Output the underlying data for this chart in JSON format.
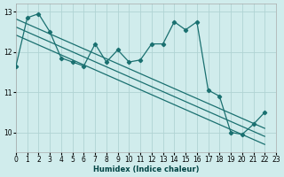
{
  "xlabel": "Humidex (Indice chaleur)",
  "bg_color": "#d0ecec",
  "grid_color": "#b0d4d4",
  "line_color": "#1a7070",
  "xlim": [
    0,
    23
  ],
  "ylim": [
    9.5,
    13.2
  ],
  "yticks": [
    10,
    11,
    12,
    13
  ],
  "xticks": [
    0,
    1,
    2,
    3,
    4,
    5,
    6,
    7,
    8,
    9,
    10,
    11,
    12,
    13,
    14,
    15,
    16,
    17,
    18,
    19,
    20,
    21,
    22,
    23
  ],
  "zigzag_x": [
    0,
    1,
    2,
    3,
    4,
    5,
    6,
    7,
    8,
    9,
    10,
    11,
    12,
    13,
    14,
    15,
    16,
    17,
    18,
    19,
    20,
    21,
    22
  ],
  "zigzag_y": [
    11.65,
    12.85,
    12.95,
    12.5,
    11.85,
    11.75,
    11.65,
    12.2,
    11.75,
    12.05,
    11.75,
    11.8,
    12.2,
    12.2,
    12.75,
    12.55,
    12.75,
    11.05,
    10.9,
    10.0,
    9.95,
    10.2,
    10.5
  ],
  "trend_lines": [
    {
      "x": [
        0,
        22
      ],
      "y": [
        12.82,
        10.1
      ]
    },
    {
      "x": [
        0,
        22
      ],
      "y": [
        12.62,
        9.9
      ]
    },
    {
      "x": [
        0,
        22
      ],
      "y": [
        12.42,
        9.7
      ]
    }
  ]
}
